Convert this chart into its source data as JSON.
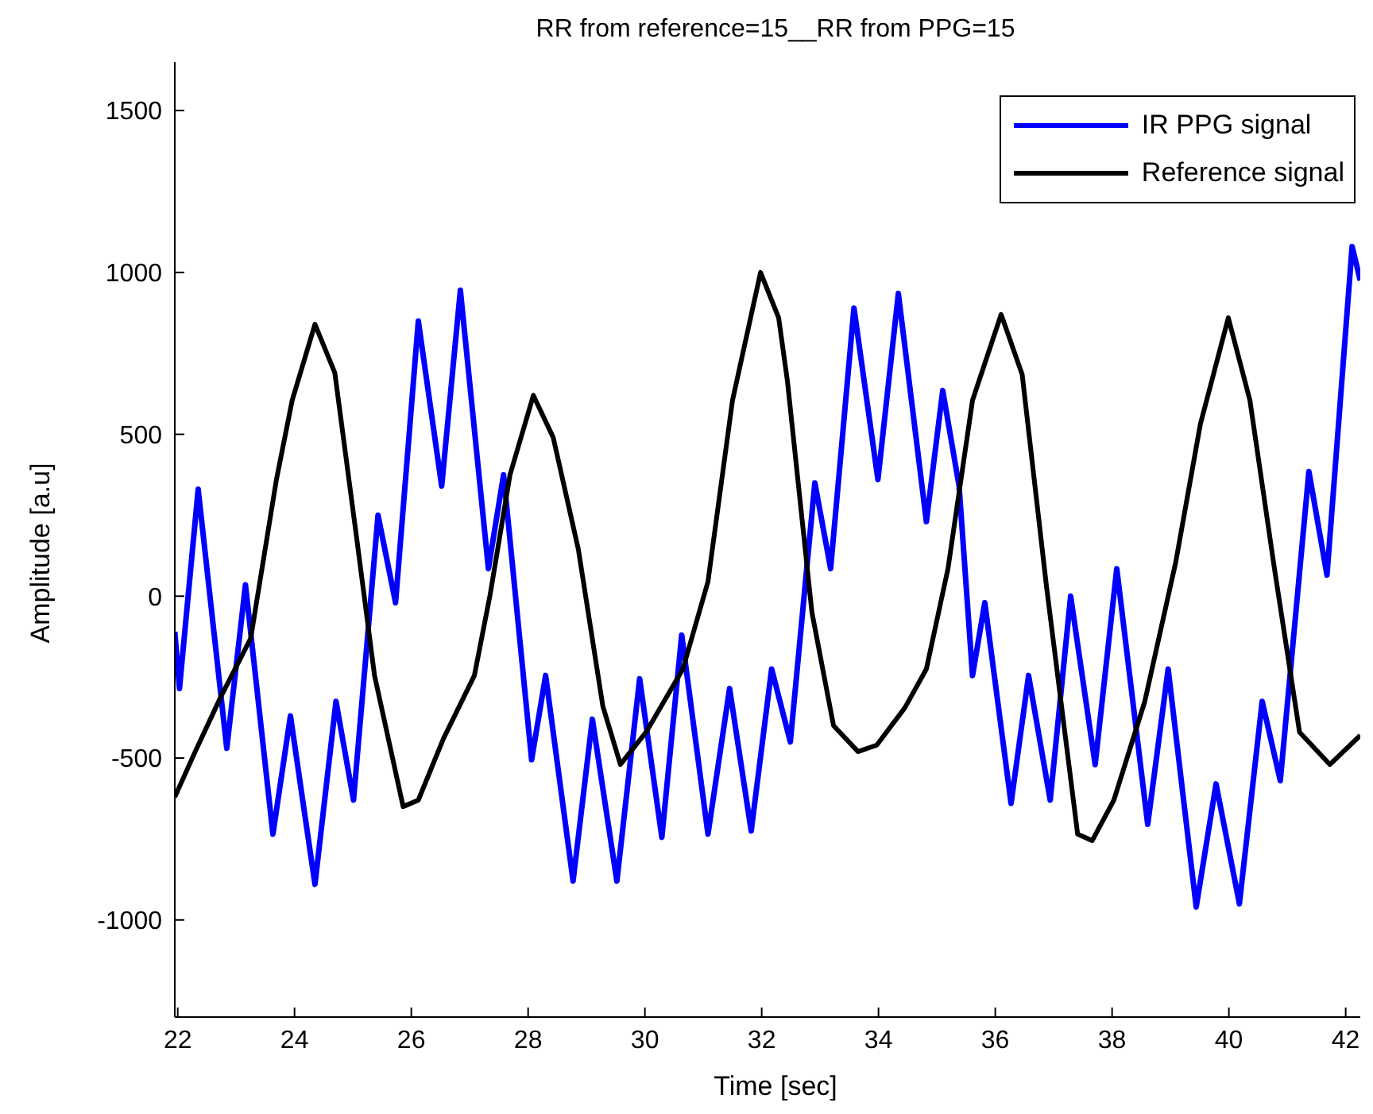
{
  "chart_data": {
    "type": "line",
    "title": "RR from reference=15__RR from PPG=15",
    "xlabel": "Time [sec]",
    "ylabel": "Amplitude [a.u]",
    "xlim": [
      21.95,
      42.25
    ],
    "xticks": [
      22,
      24,
      26,
      28,
      30,
      32,
      34,
      36,
      38,
      40,
      42
    ],
    "ylim": [
      -1300,
      1650
    ],
    "yticks": [
      -1000,
      -500,
      0,
      500,
      1000,
      1500
    ],
    "legend": "top right",
    "marker": "none",
    "line_style": "solid",
    "series": [
      {
        "name": "IR PPG signal",
        "color": "#0000ff",
        "x": [
          21.95,
          22.03,
          22.35,
          22.84,
          23.16,
          23.63,
          23.93,
          24.35,
          24.71,
          25.01,
          25.43,
          25.73,
          26.12,
          26.52,
          26.84,
          27.32,
          27.58,
          28.06,
          28.3,
          28.77,
          29.1,
          29.52,
          29.91,
          30.29,
          30.63,
          31.08,
          31.45,
          31.82,
          32.17,
          32.49,
          32.91,
          33.18,
          33.58,
          33.99,
          34.34,
          34.82,
          35.1,
          35.38,
          35.61,
          35.82,
          36.27,
          36.57,
          36.94,
          37.29,
          37.71,
          38.08,
          38.61,
          38.96,
          39.44,
          39.78,
          40.18,
          40.57,
          40.88,
          41.37,
          41.68,
          42.11,
          42.25
        ],
        "values": [
          -110,
          -285,
          330,
          -470,
          35,
          -735,
          -370,
          -890,
          -325,
          -630,
          250,
          -20,
          850,
          340,
          945,
          85,
          375,
          -505,
          -245,
          -880,
          -380,
          -880,
          -255,
          -745,
          -120,
          -735,
          -285,
          -725,
          -225,
          -450,
          350,
          85,
          890,
          360,
          935,
          230,
          635,
          340,
          -245,
          -20,
          -640,
          -245,
          -630,
          0,
          -520,
          85,
          -705,
          -225,
          -960,
          -580,
          -950,
          -325,
          -570,
          385,
          65,
          1080,
          975
        ]
      },
      {
        "name": "Reference signal",
        "color": "#000000",
        "x": [
          21.95,
          22.3,
          22.74,
          23.25,
          23.69,
          23.96,
          24.35,
          24.69,
          25.06,
          25.37,
          25.86,
          26.12,
          26.55,
          27.08,
          27.35,
          27.69,
          28.09,
          28.43,
          28.86,
          29.28,
          29.58,
          30.02,
          30.65,
          31.08,
          31.5,
          31.98,
          32.29,
          32.44,
          32.86,
          33.23,
          33.65,
          33.97,
          34.45,
          34.82,
          35.19,
          35.61,
          36.1,
          36.46,
          36.88,
          37.41,
          37.66,
          38.03,
          38.56,
          39.09,
          39.51,
          39.99,
          40.36,
          40.78,
          41.21,
          41.73,
          42.25
        ],
        "values": [
          -620,
          -480,
          -310,
          -130,
          360,
          605,
          840,
          690,
          185,
          -245,
          -650,
          -630,
          -440,
          -245,
          5,
          375,
          620,
          490,
          145,
          -340,
          -520,
          -420,
          -225,
          45,
          605,
          1000,
          860,
          665,
          -50,
          -400,
          -480,
          -460,
          -345,
          -225,
          85,
          605,
          870,
          685,
          25,
          -735,
          -755,
          -630,
          -325,
          105,
          530,
          860,
          605,
          85,
          -420,
          -520,
          -430
        ]
      }
    ]
  }
}
